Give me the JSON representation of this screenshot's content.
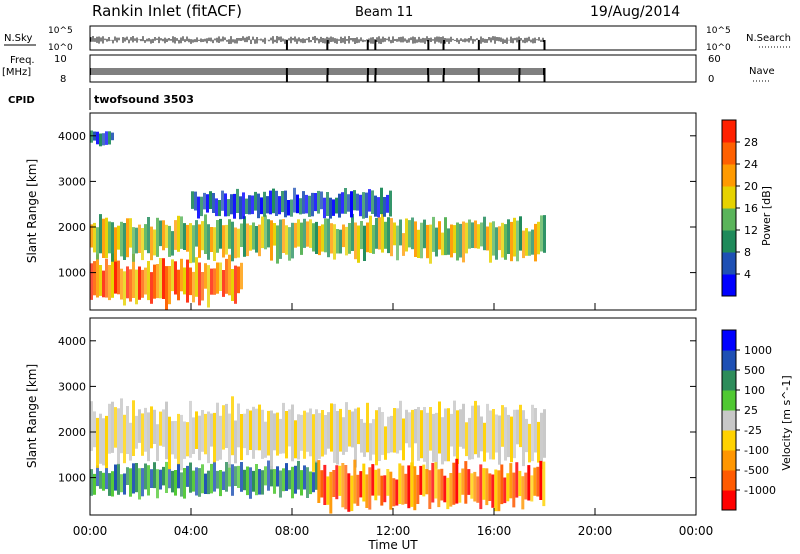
{
  "header": {
    "station": "Rankin Inlet (fitACF)",
    "beam": "Beam 11",
    "date": "19/Aug/2014"
  },
  "noise_panel": {
    "left_label": "N.Sky",
    "right_label": "N.Search",
    "tick_top": "10^5",
    "tick_bottom": "10^0"
  },
  "freq_panel": {
    "left_label_1": "Freq.",
    "left_label_2": "[MHz]",
    "left_ticks": [
      "10",
      "8"
    ],
    "right_label": "Nave",
    "right_ticks": [
      "60",
      "0"
    ]
  },
  "cpid_panel": {
    "label": "CPID",
    "value": "twofsound 3503"
  },
  "chart_data": [
    {
      "type": "heatmap",
      "title": "Power",
      "ylabel": "Slant Range [km]",
      "ylim": [
        180,
        4500
      ],
      "yticks": [
        1000,
        2000,
        3000,
        4000
      ],
      "colorbar_label": "Power [dB]",
      "colorbar_ticks": [
        "4",
        "8",
        "12",
        "16",
        "20",
        "24",
        "28"
      ],
      "colorbar_colors": [
        "#0000ff",
        "#1e50b4",
        "#1e8a5a",
        "#5ab45a",
        "#e6d200",
        "#ff9a00",
        "#ff6000",
        "#ff2000"
      ],
      "bands": [
        {
          "t": [
            0.0,
            6.0
          ],
          "range": [
            300,
            1300
          ],
          "level": "high"
        },
        {
          "t": [
            0.0,
            18.0
          ],
          "range": [
            1300,
            2200
          ],
          "level": "medium"
        },
        {
          "t": [
            4.0,
            12.0
          ],
          "range": [
            2200,
            2800
          ],
          "level": "low"
        },
        {
          "t": [
            0.0,
            1.0
          ],
          "range": [
            3800,
            4100
          ],
          "level": "low"
        }
      ]
    },
    {
      "type": "heatmap",
      "title": "Velocity",
      "xlabel": "Time UT",
      "ylabel": "Slant Range [km]",
      "ylim": [
        180,
        4500
      ],
      "yticks": [
        1000,
        2000,
        3000,
        4000
      ],
      "xticks": [
        "00:00",
        "04:00",
        "08:00",
        "12:00",
        "16:00",
        "20:00",
        "00:00"
      ],
      "xlim": [
        0,
        24
      ],
      "colorbar_label": "Velocity [m s^-1]",
      "colorbar_ticks": [
        "-1000",
        "-500",
        "-100",
        "-25",
        "25",
        "100",
        "500",
        "1000"
      ],
      "colorbar_colors": [
        "#ff0000",
        "#ff5a00",
        "#ff9600",
        "#ffd200",
        "#c8c8c8",
        "#50c832",
        "#2d8c5a",
        "#1e50b4",
        "#0000ff"
      ],
      "bands": [
        {
          "t": [
            0.0,
            9.0
          ],
          "range": [
            600,
            1300
          ],
          "level": "toward"
        },
        {
          "t": [
            0.0,
            18.0
          ],
          "range": [
            1300,
            2600
          ],
          "level": "near-zero"
        },
        {
          "t": [
            9.0,
            18.0
          ],
          "range": [
            300,
            1300
          ],
          "level": "away"
        }
      ]
    }
  ]
}
